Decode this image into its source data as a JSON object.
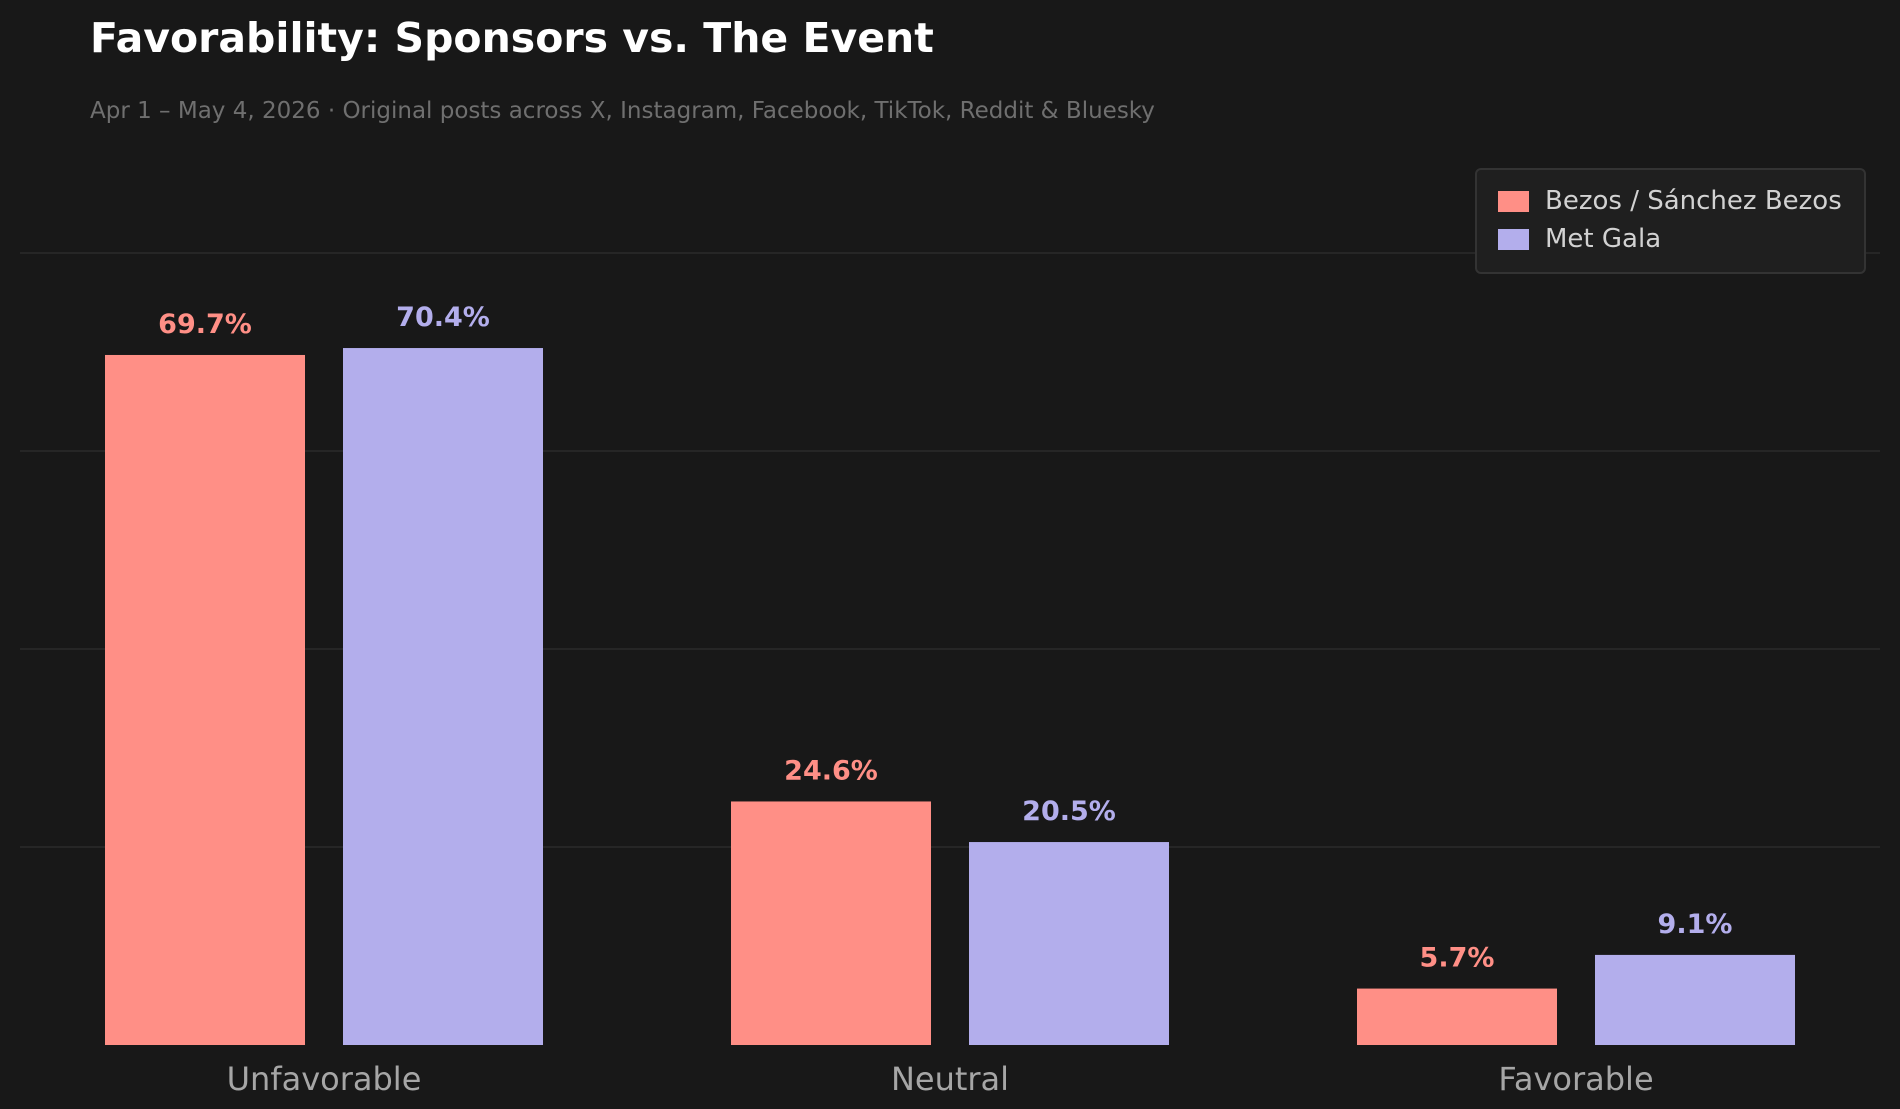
{
  "title": "Favorability: Sponsors vs. The Event",
  "subtitle": "Apr 1 – May 4, 2026  ·  Original posts across X, Instagram, Facebook, TikTok, Reddit & Bluesky",
  "colors": {
    "background": "#181818",
    "grid": "#2a2a2a",
    "tick_label": "#a6a6a6"
  },
  "chart_data": {
    "type": "bar",
    "categories": [
      "Unfavorable",
      "Neutral",
      "Favorable"
    ],
    "series": [
      {
        "name": "Bezos / Sánchez Bezos",
        "color": "#ff8f86",
        "values": [
          69.7,
          24.6,
          5.7
        ],
        "labels": [
          "69.7%",
          "24.6%",
          "5.7%"
        ]
      },
      {
        "name": "Met Gala",
        "color": "#b3aeec",
        "values": [
          70.4,
          20.5,
          9.1
        ],
        "labels": [
          "70.4%",
          "20.5%",
          "9.1%"
        ]
      }
    ],
    "ylim": [
      0,
      80
    ],
    "grid": true,
    "y_tick_labels_visible": false,
    "legend_position": "top-right"
  }
}
